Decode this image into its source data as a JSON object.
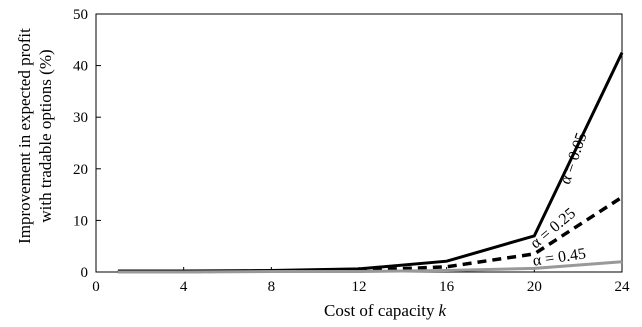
{
  "chart_data": {
    "type": "line",
    "title": "",
    "xlabel": "Cost of capacity",
    "xlabel_var": "k",
    "ylabel": [
      "Improvement in expected profit",
      "with tradable options (%)"
    ],
    "xlim": [
      0,
      24
    ],
    "ylim": [
      0,
      50
    ],
    "xticks": [
      0,
      4,
      8,
      12,
      16,
      20,
      24
    ],
    "yticks": [
      0,
      10,
      20,
      30,
      40,
      50
    ],
    "grid": false,
    "x": [
      1,
      4,
      8,
      12,
      16,
      20,
      24
    ],
    "series": [
      {
        "name": "α = 0.05",
        "values": [
          0.2,
          0.2,
          0.3,
          0.6,
          2.1,
          7.0,
          42.5
        ],
        "style": "solid",
        "color": "#000000"
      },
      {
        "name": "α = 0.25",
        "values": [
          0.1,
          0.1,
          0.2,
          0.3,
          1.0,
          3.5,
          14.5
        ],
        "style": "dashed",
        "color": "#000000"
      },
      {
        "name": "α = 0.45",
        "values": [
          0.0,
          0.0,
          0.1,
          0.1,
          0.3,
          0.7,
          2.0
        ],
        "style": "solid",
        "color": "#999999"
      }
    ]
  }
}
